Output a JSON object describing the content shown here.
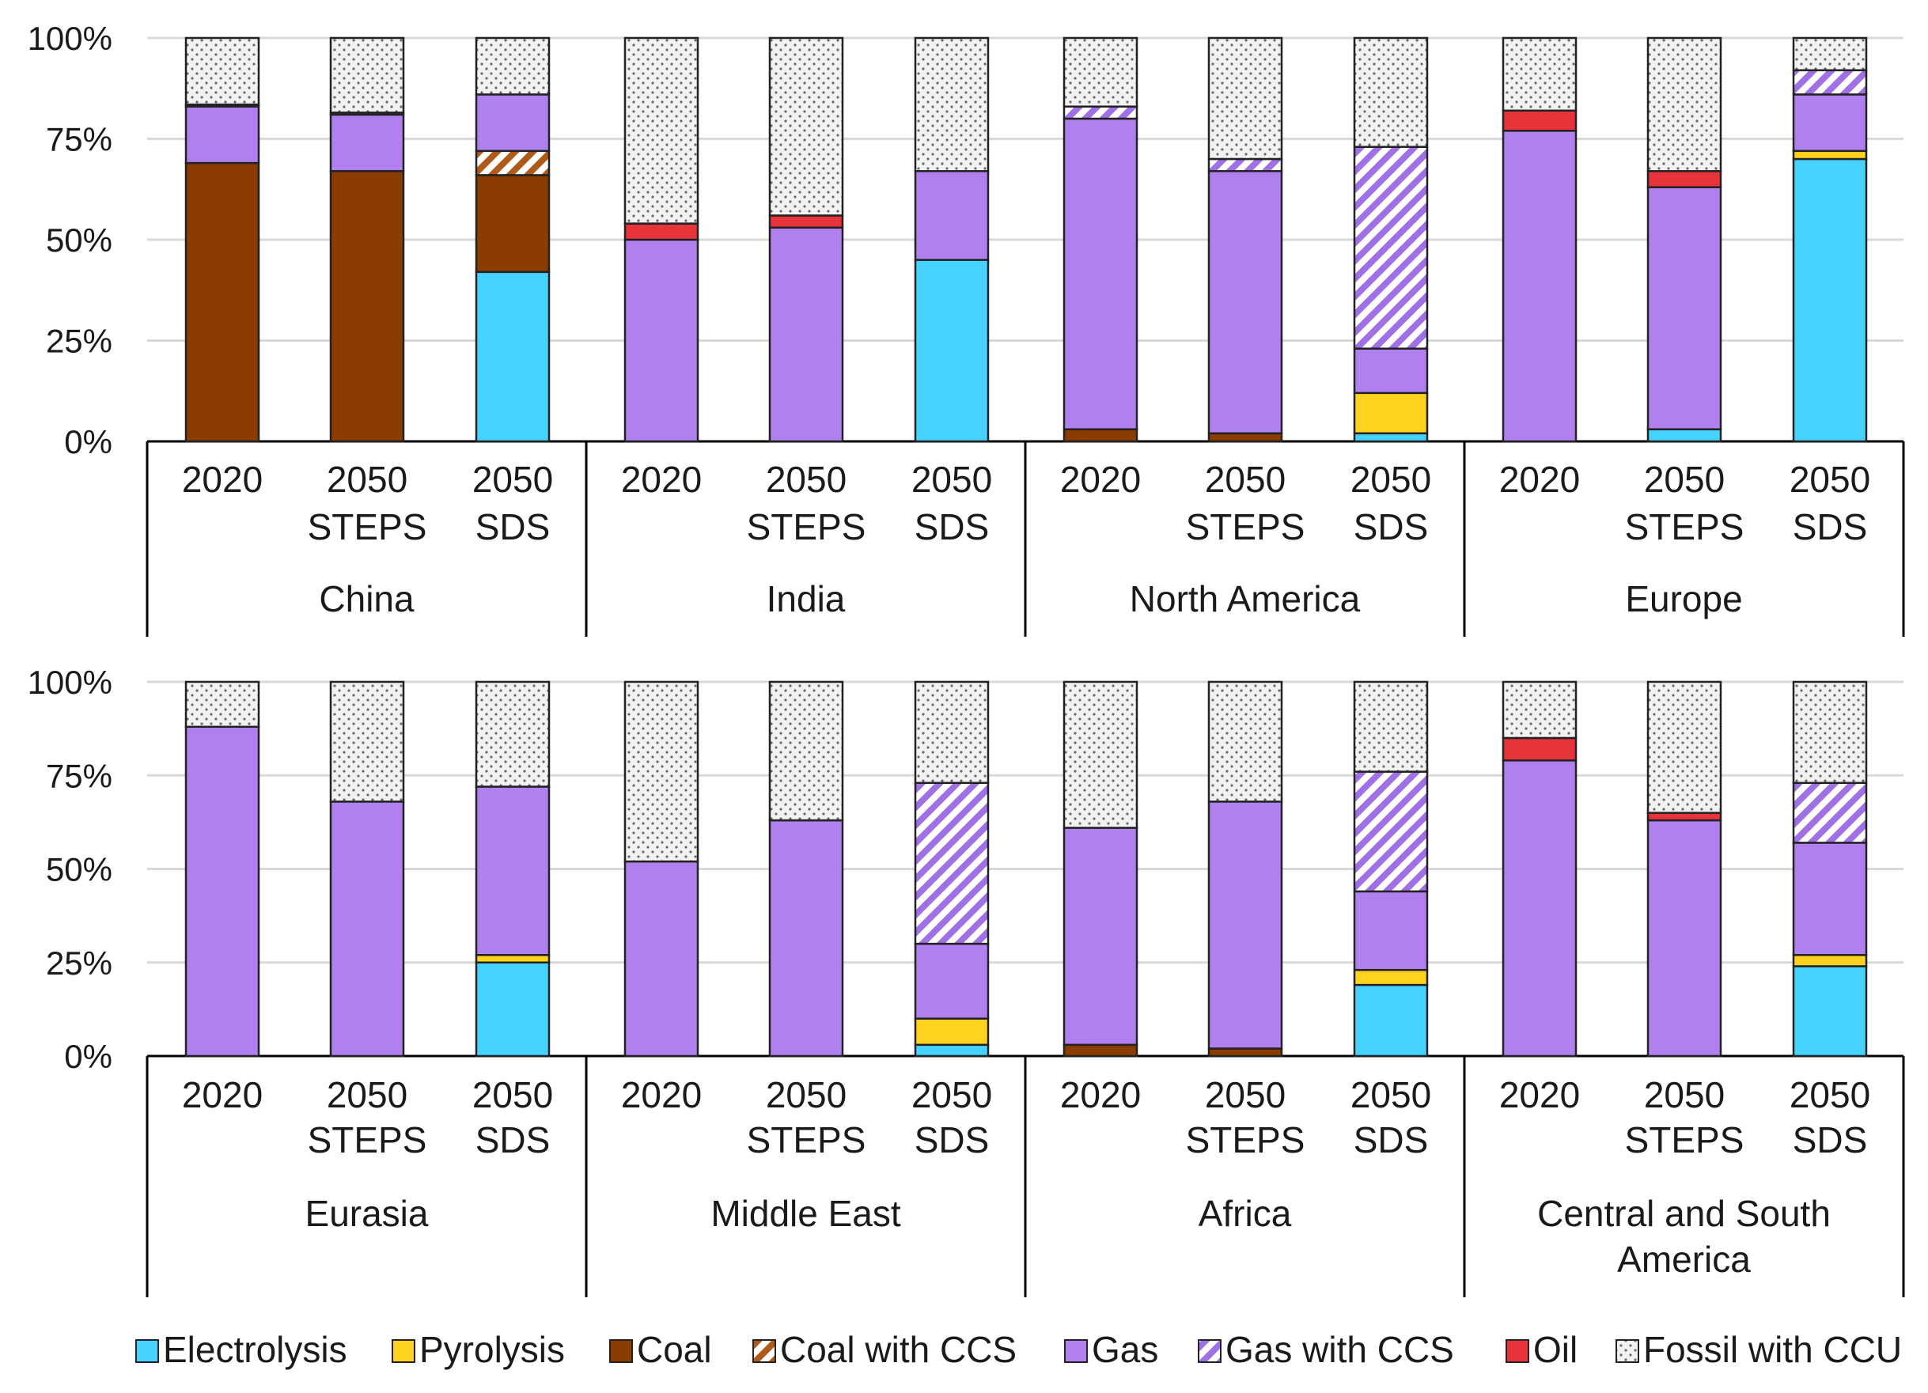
{
  "colors": {
    "Electrolysis": "#45d2ff",
    "Pyrolysis": "#ffd21f",
    "Coal": "#8b3c00",
    "Coal with CCS": "#b05a1a",
    "Gas": "#b080ee",
    "Gas with CCS": "#a070e6",
    "Oil": "#e8333a",
    "Fossil with CCU": "#d8d8d8"
  },
  "chart_data": {
    "type": "bar",
    "stacked": true,
    "ylim": [
      0,
      100
    ],
    "y_ticks": [
      "0%",
      "25%",
      "50%",
      "75%",
      "100%"
    ],
    "grid": true,
    "legend_position": "bottom",
    "legend": [
      "Electrolysis",
      "Pyrolysis",
      "Coal",
      "Coal with CCS",
      "Gas",
      "Gas with CCS",
      "Oil",
      "Fossil with CCU"
    ],
    "scenario_labels": [
      [
        "2020"
      ],
      [
        "2050",
        "STEPS"
      ],
      [
        "2050",
        "SDS"
      ]
    ],
    "panels": [
      {
        "groups": [
          {
            "name": [
              "China"
            ],
            "bars": [
              {
                "Electrolysis": 0,
                "Pyrolysis": 0,
                "Coal": 69,
                "Coal with CCS": 0,
                "Gas": 14,
                "Gas with CCS": 0,
                "Oil": 0.5,
                "Fossil with CCU": 16.5
              },
              {
                "Electrolysis": 0,
                "Pyrolysis": 0,
                "Coal": 67,
                "Coal with CCS": 0,
                "Gas": 14,
                "Gas with CCS": 0,
                "Oil": 0.5,
                "Fossil with CCU": 18.5
              },
              {
                "Electrolysis": 42,
                "Pyrolysis": 0,
                "Coal": 24,
                "Coal with CCS": 6,
                "Gas": 14,
                "Gas with CCS": 0,
                "Oil": 0,
                "Fossil with CCU": 14
              }
            ]
          },
          {
            "name": [
              "India"
            ],
            "bars": [
              {
                "Electrolysis": 0,
                "Pyrolysis": 0,
                "Coal": 0,
                "Coal with CCS": 0,
                "Gas": 50,
                "Gas with CCS": 0,
                "Oil": 4,
                "Fossil with CCU": 46
              },
              {
                "Electrolysis": 0,
                "Pyrolysis": 0,
                "Coal": 0,
                "Coal with CCS": 0,
                "Gas": 53,
                "Gas with CCS": 0,
                "Oil": 3,
                "Fossil with CCU": 44
              },
              {
                "Electrolysis": 45,
                "Pyrolysis": 0,
                "Coal": 0,
                "Coal with CCS": 0,
                "Gas": 22,
                "Gas with CCS": 0,
                "Oil": 0,
                "Fossil with CCU": 33
              }
            ]
          },
          {
            "name": [
              "North America"
            ],
            "bars": [
              {
                "Electrolysis": 0,
                "Pyrolysis": 0,
                "Coal": 3,
                "Coal with CCS": 0,
                "Gas": 77,
                "Gas with CCS": 3,
                "Oil": 0,
                "Fossil with CCU": 17
              },
              {
                "Electrolysis": 0,
                "Pyrolysis": 0,
                "Coal": 2,
                "Coal with CCS": 0,
                "Gas": 65,
                "Gas with CCS": 3,
                "Oil": 0,
                "Fossil with CCU": 30
              },
              {
                "Electrolysis": 2,
                "Pyrolysis": 10,
                "Coal": 0,
                "Coal with CCS": 0,
                "Gas": 11,
                "Gas with CCS": 50,
                "Oil": 0,
                "Fossil with CCU": 27
              }
            ]
          },
          {
            "name": [
              "Europe"
            ],
            "bars": [
              {
                "Electrolysis": 0,
                "Pyrolysis": 0,
                "Coal": 0,
                "Coal with CCS": 0,
                "Gas": 77,
                "Gas with CCS": 0,
                "Oil": 5,
                "Fossil with CCU": 18
              },
              {
                "Electrolysis": 3,
                "Pyrolysis": 0,
                "Coal": 0,
                "Coal with CCS": 0,
                "Gas": 60,
                "Gas with CCS": 0,
                "Oil": 4,
                "Fossil with CCU": 33
              },
              {
                "Electrolysis": 70,
                "Pyrolysis": 2,
                "Coal": 0,
                "Coal with CCS": 0,
                "Gas": 14,
                "Gas with CCS": 6,
                "Oil": 0,
                "Fossil with CCU": 8
              }
            ]
          }
        ]
      },
      {
        "groups": [
          {
            "name": [
              "Eurasia"
            ],
            "bars": [
              {
                "Electrolysis": 0,
                "Pyrolysis": 0,
                "Coal": 0,
                "Coal with CCS": 0,
                "Gas": 88,
                "Gas with CCS": 0,
                "Oil": 0,
                "Fossil with CCU": 12
              },
              {
                "Electrolysis": 0,
                "Pyrolysis": 0,
                "Coal": 0,
                "Coal with CCS": 0,
                "Gas": 68,
                "Gas with CCS": 0,
                "Oil": 0,
                "Fossil with CCU": 32
              },
              {
                "Electrolysis": 25,
                "Pyrolysis": 2,
                "Coal": 0,
                "Coal with CCS": 0,
                "Gas": 45,
                "Gas with CCS": 0,
                "Oil": 0,
                "Fossil with CCU": 28
              }
            ]
          },
          {
            "name": [
              "Middle East"
            ],
            "bars": [
              {
                "Electrolysis": 0,
                "Pyrolysis": 0,
                "Coal": 0,
                "Coal with CCS": 0,
                "Gas": 52,
                "Gas with CCS": 0,
                "Oil": 0,
                "Fossil with CCU": 48
              },
              {
                "Electrolysis": 0,
                "Pyrolysis": 0,
                "Coal": 0,
                "Coal with CCS": 0,
                "Gas": 63,
                "Gas with CCS": 0,
                "Oil": 0,
                "Fossil with CCU": 37
              },
              {
                "Electrolysis": 3,
                "Pyrolysis": 7,
                "Coal": 0,
                "Coal with CCS": 0,
                "Gas": 20,
                "Gas with CCS": 43,
                "Oil": 0,
                "Fossil with CCU": 27
              }
            ]
          },
          {
            "name": [
              "Africa"
            ],
            "bars": [
              {
                "Electrolysis": 0,
                "Pyrolysis": 0,
                "Coal": 3,
                "Coal with CCS": 0,
                "Gas": 58,
                "Gas with CCS": 0,
                "Oil": 0,
                "Fossil with CCU": 39
              },
              {
                "Electrolysis": 0,
                "Pyrolysis": 0,
                "Coal": 2,
                "Coal with CCS": 0,
                "Gas": 66,
                "Gas with CCS": 0,
                "Oil": 0,
                "Fossil with CCU": 32
              },
              {
                "Electrolysis": 19,
                "Pyrolysis": 4,
                "Coal": 0,
                "Coal with CCS": 0,
                "Gas": 21,
                "Gas with CCS": 32,
                "Oil": 0,
                "Fossil with CCU": 24
              }
            ]
          },
          {
            "name": [
              "Central and South",
              "America"
            ],
            "bars": [
              {
                "Electrolysis": 0,
                "Pyrolysis": 0,
                "Coal": 0,
                "Coal with CCS": 0,
                "Gas": 79,
                "Gas with CCS": 0,
                "Oil": 6,
                "Fossil with CCU": 15
              },
              {
                "Electrolysis": 0,
                "Pyrolysis": 0,
                "Coal": 0,
                "Coal with CCS": 0,
                "Gas": 63,
                "Gas with CCS": 0,
                "Oil": 2,
                "Fossil with CCU": 35
              },
              {
                "Electrolysis": 24,
                "Pyrolysis": 3,
                "Coal": 0,
                "Coal with CCS": 0,
                "Gas": 30,
                "Gas with CCS": 16,
                "Oil": 0,
                "Fossil with CCU": 27
              }
            ]
          }
        ]
      }
    ]
  }
}
